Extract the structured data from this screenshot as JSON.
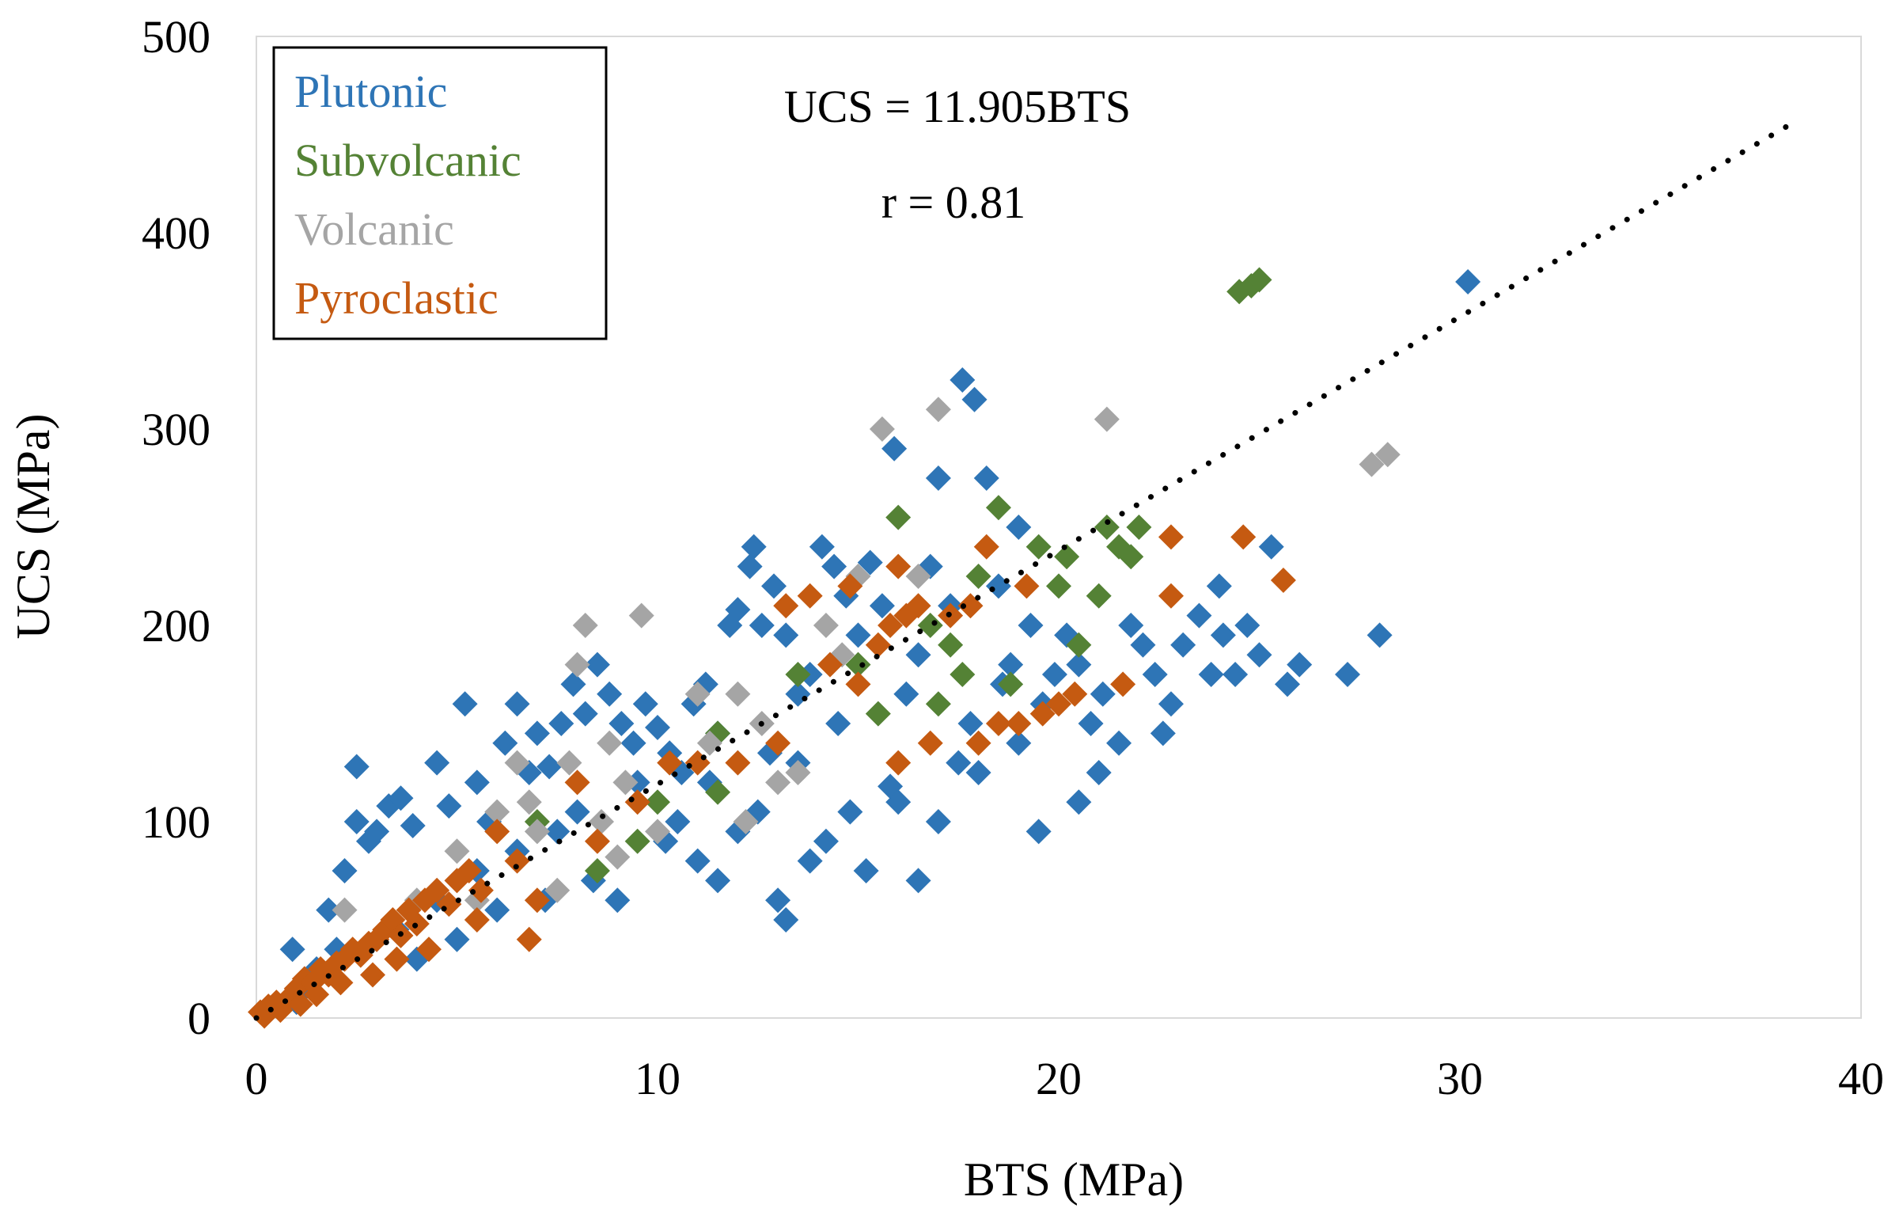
{
  "chart_data": {
    "type": "scatter",
    "xlabel": "BTS (MPa)",
    "ylabel": "UCS (MPa)",
    "xlim": [
      0,
      40
    ],
    "ylim": [
      0,
      500
    ],
    "xticks": [
      0,
      10,
      20,
      30,
      40
    ],
    "yticks": [
      0,
      100,
      200,
      300,
      400,
      500
    ],
    "grid": false,
    "legend_position": "top-left",
    "annotations": {
      "equation": "UCS = 11.905BTS",
      "correlation": "r = 0.81"
    },
    "trendline": {
      "slope": 11.905,
      "intercept": 0,
      "x_range": [
        0,
        38.2
      ],
      "style": "dotted",
      "color": "#000000"
    },
    "series": [
      {
        "name": "Plutonic",
        "color": "#2e75b6",
        "points": [
          [
            0.9,
            35
          ],
          [
            1.5,
            25
          ],
          [
            1.8,
            55
          ],
          [
            2.2,
            75
          ],
          [
            2.5,
            100
          ],
          [
            2.5,
            128
          ],
          [
            2.8,
            90
          ],
          [
            3,
            95
          ],
          [
            3.3,
            108
          ],
          [
            3.6,
            112
          ],
          [
            3.9,
            98
          ],
          [
            4.5,
            130
          ],
          [
            4.8,
            108
          ],
          [
            5.2,
            160
          ],
          [
            5.5,
            120
          ],
          [
            5.8,
            100
          ],
          [
            6.2,
            140
          ],
          [
            6.5,
            160
          ],
          [
            6.8,
            125
          ],
          [
            7.0,
            145
          ],
          [
            7.3,
            128
          ],
          [
            7.6,
            150
          ],
          [
            7.9,
            170
          ],
          [
            8.2,
            155
          ],
          [
            8.5,
            180
          ],
          [
            8.8,
            165
          ],
          [
            9.1,
            150
          ],
          [
            9.4,
            140
          ],
          [
            9.7,
            160
          ],
          [
            10.0,
            148
          ],
          [
            10.3,
            135
          ],
          [
            10.6,
            125
          ],
          [
            10.9,
            160
          ],
          [
            11.2,
            170
          ],
          [
            11.5,
            145
          ],
          [
            11.8,
            200
          ],
          [
            12.0,
            208
          ],
          [
            12.3,
            230
          ],
          [
            12.4,
            240
          ],
          [
            12.6,
            200
          ],
          [
            12.9,
            220
          ],
          [
            13.2,
            195
          ],
          [
            13.5,
            165
          ],
          [
            13.8,
            175
          ],
          [
            14.1,
            240
          ],
          [
            14.4,
            230
          ],
          [
            14.7,
            215
          ],
          [
            15.0,
            195
          ],
          [
            15.3,
            232
          ],
          [
            15.6,
            210
          ],
          [
            15.9,
            290
          ],
          [
            16.2,
            165
          ],
          [
            16.5,
            185
          ],
          [
            16.8,
            230
          ],
          [
            17.0,
            275
          ],
          [
            17.3,
            210
          ],
          [
            17.6,
            325
          ],
          [
            17.9,
            315
          ],
          [
            18.2,
            275
          ],
          [
            18.5,
            220
          ],
          [
            18.8,
            180
          ],
          [
            19.0,
            250
          ],
          [
            19.3,
            200
          ],
          [
            19.6,
            160
          ],
          [
            19.9,
            175
          ],
          [
            20.2,
            195
          ],
          [
            20.5,
            180
          ],
          [
            20.8,
            150
          ],
          [
            21.1,
            165
          ],
          [
            21.5,
            140
          ],
          [
            21.8,
            200
          ],
          [
            22.1,
            190
          ],
          [
            22.4,
            175
          ],
          [
            22.8,
            160
          ],
          [
            23.1,
            190
          ],
          [
            23.5,
            205
          ],
          [
            23.8,
            175
          ],
          [
            24.1,
            195
          ],
          [
            24.4,
            175
          ],
          [
            24.7,
            200
          ],
          [
            25.0,
            185
          ],
          [
            25.3,
            240
          ],
          [
            25.7,
            170
          ],
          [
            26.0,
            180
          ],
          [
            27.2,
            175
          ],
          [
            28.0,
            195
          ],
          [
            30.2,
            375
          ],
          [
            9.5,
            120
          ],
          [
            10.5,
            100
          ],
          [
            11.0,
            80
          ],
          [
            11.5,
            70
          ],
          [
            12.0,
            95
          ],
          [
            12.5,
            105
          ],
          [
            13.0,
            60
          ],
          [
            13.2,
            50
          ],
          [
            13.8,
            80
          ],
          [
            14.2,
            90
          ],
          [
            14.8,
            105
          ],
          [
            15.2,
            75
          ],
          [
            15.8,
            118
          ],
          [
            16.5,
            70
          ],
          [
            17.0,
            100
          ],
          [
            17.5,
            130
          ],
          [
            18.0,
            125
          ],
          [
            19.0,
            140
          ],
          [
            19.5,
            95
          ],
          [
            20.5,
            110
          ],
          [
            8.0,
            105
          ],
          [
            7.5,
            95
          ],
          [
            6.5,
            85
          ],
          [
            5.5,
            75
          ],
          [
            4.5,
            60
          ],
          [
            3.5,
            45
          ],
          [
            2.0,
            35
          ],
          [
            1.2,
            15
          ],
          [
            1.0,
            8
          ],
          [
            16.0,
            110
          ],
          [
            17.8,
            150
          ],
          [
            14.5,
            150
          ],
          [
            13.5,
            130
          ],
          [
            12.8,
            135
          ],
          [
            11.3,
            120
          ],
          [
            10.2,
            90
          ],
          [
            9.0,
            60
          ],
          [
            8.4,
            70
          ],
          [
            7.2,
            60
          ],
          [
            6.0,
            55
          ],
          [
            5.0,
            40
          ],
          [
            4.0,
            30
          ],
          [
            18.6,
            170
          ],
          [
            21.0,
            125
          ],
          [
            22.6,
            145
          ],
          [
            24.0,
            220
          ]
        ]
      },
      {
        "name": "Subvolcanic",
        "color": "#548235",
        "points": [
          [
            9.5,
            90
          ],
          [
            10.0,
            110
          ],
          [
            11.5,
            145
          ],
          [
            11.5,
            115
          ],
          [
            13.5,
            175
          ],
          [
            15.0,
            180
          ],
          [
            15.5,
            155
          ],
          [
            16.0,
            255
          ],
          [
            16.8,
            200
          ],
          [
            17.0,
            160
          ],
          [
            17.3,
            190
          ],
          [
            17.6,
            175
          ],
          [
            18.0,
            225
          ],
          [
            18.5,
            260
          ],
          [
            18.8,
            170
          ],
          [
            19.5,
            240
          ],
          [
            20.0,
            220
          ],
          [
            20.2,
            235
          ],
          [
            20.5,
            190
          ],
          [
            21.0,
            215
          ],
          [
            21.2,
            250
          ],
          [
            21.5,
            240
          ],
          [
            21.8,
            235
          ],
          [
            22.0,
            250
          ],
          [
            24.5,
            370
          ],
          [
            24.8,
            373
          ],
          [
            25.0,
            376
          ],
          [
            8.5,
            75
          ],
          [
            7.0,
            100
          ]
        ]
      },
      {
        "name": "Volcanic",
        "color": "#a5a5a5",
        "points": [
          [
            1.5,
            20
          ],
          [
            2.2,
            55
          ],
          [
            3.0,
            40
          ],
          [
            4.0,
            60
          ],
          [
            5.0,
            85
          ],
          [
            5.5,
            60
          ],
          [
            6.0,
            105
          ],
          [
            6.5,
            130
          ],
          [
            7.0,
            95
          ],
          [
            7.5,
            65
          ],
          [
            8.0,
            180
          ],
          [
            8.2,
            200
          ],
          [
            8.8,
            140
          ],
          [
            9.2,
            120
          ],
          [
            9.6,
            205
          ],
          [
            10.0,
            95
          ],
          [
            11.0,
            165
          ],
          [
            11.3,
            140
          ],
          [
            12.0,
            165
          ],
          [
            12.6,
            150
          ],
          [
            13.0,
            120
          ],
          [
            13.5,
            125
          ],
          [
            14.2,
            200
          ],
          [
            14.6,
            185
          ],
          [
            15.0,
            225
          ],
          [
            15.6,
            300
          ],
          [
            16.5,
            225
          ],
          [
            17.0,
            310
          ],
          [
            21.2,
            305
          ],
          [
            27.8,
            282
          ],
          [
            28.2,
            287
          ],
          [
            8.6,
            100
          ],
          [
            9.0,
            82
          ],
          [
            12.2,
            100
          ],
          [
            7.8,
            130
          ],
          [
            6.8,
            110
          ]
        ]
      },
      {
        "name": "Pyroclastic",
        "color": "#c55a11",
        "points": [
          [
            0.1,
            3
          ],
          [
            0.3,
            6
          ],
          [
            0.5,
            8
          ],
          [
            0.8,
            10
          ],
          [
            1.0,
            15
          ],
          [
            1.2,
            20
          ],
          [
            1.4,
            18
          ],
          [
            1.6,
            25
          ],
          [
            1.8,
            22
          ],
          [
            2.0,
            28
          ],
          [
            2.2,
            30
          ],
          [
            2.4,
            35
          ],
          [
            2.6,
            32
          ],
          [
            2.8,
            38
          ],
          [
            3.0,
            40
          ],
          [
            3.2,
            45
          ],
          [
            3.4,
            50
          ],
          [
            3.6,
            42
          ],
          [
            3.8,
            55
          ],
          [
            4.0,
            48
          ],
          [
            4.2,
            60
          ],
          [
            4.5,
            65
          ],
          [
            4.8,
            58
          ],
          [
            5.0,
            70
          ],
          [
            5.3,
            75
          ],
          [
            5.6,
            65
          ],
          [
            6.0,
            95
          ],
          [
            6.5,
            80
          ],
          [
            6.8,
            40
          ],
          [
            7.0,
            60
          ],
          [
            8.0,
            120
          ],
          [
            8.5,
            90
          ],
          [
            9.5,
            110
          ],
          [
            10.3,
            130
          ],
          [
            11.0,
            130
          ],
          [
            12.0,
            130
          ],
          [
            13.0,
            140
          ],
          [
            13.2,
            210
          ],
          [
            13.8,
            215
          ],
          [
            14.3,
            180
          ],
          [
            14.8,
            220
          ],
          [
            15.0,
            170
          ],
          [
            15.5,
            190
          ],
          [
            15.8,
            200
          ],
          [
            16.0,
            230
          ],
          [
            16.2,
            205
          ],
          [
            16.5,
            210
          ],
          [
            16.8,
            140
          ],
          [
            17.3,
            205
          ],
          [
            17.8,
            210
          ],
          [
            18.0,
            140
          ],
          [
            18.2,
            240
          ],
          [
            18.5,
            150
          ],
          [
            19.0,
            150
          ],
          [
            19.2,
            220
          ],
          [
            19.6,
            155
          ],
          [
            20.0,
            160
          ],
          [
            20.4,
            165
          ],
          [
            21.6,
            170
          ],
          [
            22.8,
            215
          ],
          [
            22.8,
            245
          ],
          [
            24.6,
            245
          ],
          [
            25.6,
            223
          ],
          [
            16.0,
            130
          ],
          [
            0.2,
            1
          ],
          [
            0.6,
            4
          ],
          [
            1.1,
            7
          ],
          [
            1.5,
            12
          ],
          [
            2.1,
            18
          ],
          [
            2.9,
            22
          ],
          [
            3.5,
            30
          ],
          [
            4.3,
            35
          ],
          [
            5.5,
            50
          ]
        ]
      }
    ]
  }
}
